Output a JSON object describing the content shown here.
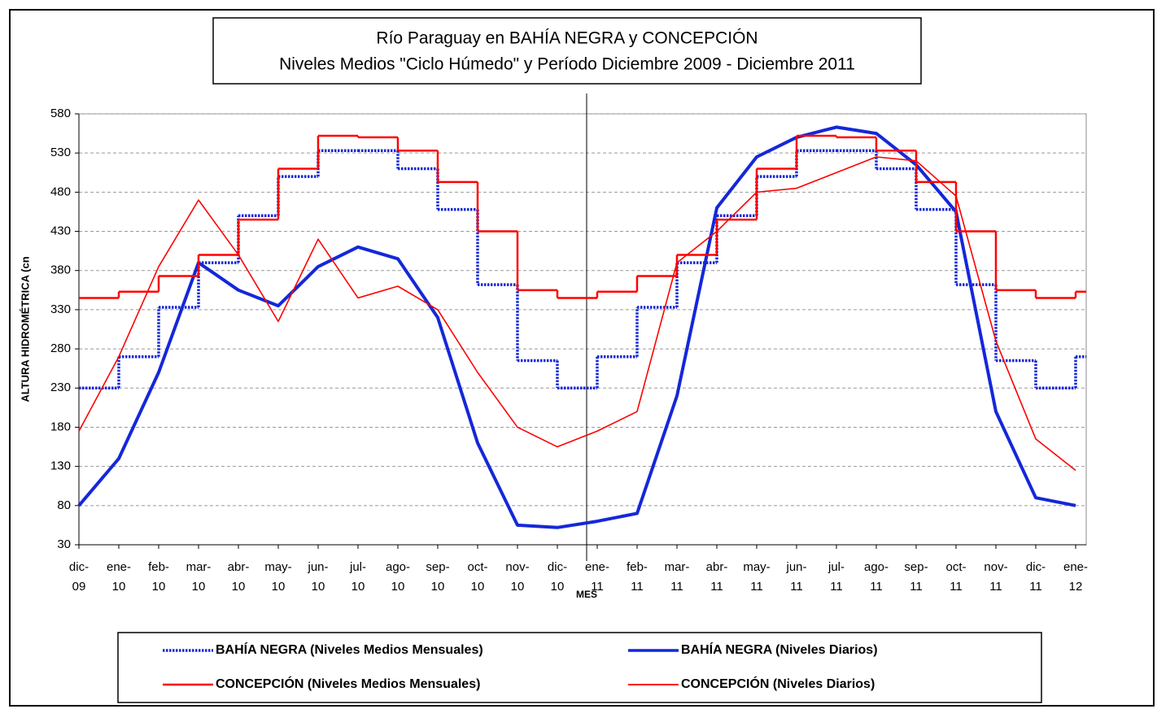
{
  "chart_data": {
    "type": "line",
    "title": "Río Paraguay en BAHÍA NEGRA y CONCEPCIÓN",
    "subtitle": "Niveles Medios \"Ciclo Húmedo\" y Período Diciembre 2009 - Diciembre 2011",
    "x_label": "MES",
    "y_label": "ALTURA HIDROMÉTRICA (cn",
    "categories": [
      "dic-09",
      "ene-10",
      "feb-10",
      "mar-10",
      "abr-10",
      "may-10",
      "jun-10",
      "jul-10",
      "ago-10",
      "sep-10",
      "oct-10",
      "nov-10",
      "dic-10",
      "ene-11",
      "feb-11",
      "mar-11",
      "abr-11",
      "may-11",
      "jun-11",
      "jul-11",
      "ago-11",
      "sep-11",
      "oct-11",
      "nov-11",
      "dic-11",
      "ene-12"
    ],
    "ylim": [
      30,
      580
    ],
    "yticks": [
      30,
      80,
      130,
      180,
      230,
      280,
      330,
      380,
      430,
      480,
      530,
      580
    ],
    "grid": true,
    "series": [
      {
        "name": "BAHÍA NEGRA (Niveles Medios Mensuales)",
        "color": "#1428d8",
        "step": true,
        "style": "dotted",
        "values": [
          230,
          270,
          333,
          390,
          450,
          500,
          533,
          533,
          510,
          458,
          362,
          265,
          230,
          270,
          333,
          390,
          450,
          500,
          533,
          533,
          510,
          458,
          362,
          265,
          230,
          270
        ]
      },
      {
        "name": "BAHÍA NEGRA (Niveles Diarios)",
        "color": "#1428d8",
        "step": false,
        "style": "solid",
        "values": [
          80,
          140,
          250,
          390,
          355,
          335,
          385,
          410,
          395,
          320,
          160,
          55,
          52,
          60,
          70,
          220,
          460,
          525,
          550,
          563,
          555,
          515,
          455,
          200,
          90,
          80
        ]
      },
      {
        "name": "CONCEPCIÓN (Niveles Medios Mensuales)",
        "color": "#ff0000",
        "step": true,
        "style": "solid",
        "values": [
          345,
          353,
          373,
          400,
          445,
          510,
          552,
          550,
          533,
          493,
          430,
          355,
          345,
          353,
          373,
          400,
          445,
          510,
          552,
          550,
          533,
          493,
          430,
          355,
          345,
          353
        ]
      },
      {
        "name": "CONCEPCIÓN (Niveles Diarios)",
        "color": "#ff0000",
        "step": false,
        "style": "solid",
        "values": [
          175,
          270,
          385,
          470,
          400,
          315,
          420,
          345,
          360,
          330,
          250,
          180,
          155,
          175,
          200,
          390,
          430,
          480,
          485,
          505,
          525,
          520,
          475,
          290,
          165,
          125
        ]
      }
    ]
  }
}
